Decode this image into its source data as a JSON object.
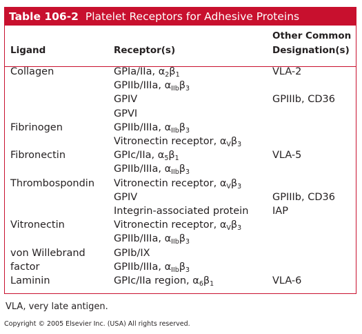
{
  "table": {
    "number": "Table 106-2",
    "title": "Platelet Receptors for Adhesive Proteins",
    "headers": {
      "ligand": "Ligand",
      "receptor": "Receptor(s)",
      "other_line1": "Other Common",
      "other_line2": "Designation(s)"
    },
    "rows": [
      {
        "ligand": "Collagen",
        "name": "GPIa/IIa, ",
        "sym": "α",
        "s1": "2",
        "sym2": "β",
        "s2": "1",
        "other": "VLA-2"
      },
      {
        "ligand": "",
        "name": "GPIIb/IIIa, ",
        "sym": "α",
        "s1": "IIb",
        "sym2": "β",
        "s2": "3",
        "other": ""
      },
      {
        "ligand": "",
        "name": "GPIV",
        "sym": "",
        "s1": "",
        "sym2": "",
        "s2": "",
        "other": "GPIIIb, CD36"
      },
      {
        "ligand": "",
        "name": "GPVI",
        "sym": "",
        "s1": "",
        "sym2": "",
        "s2": "",
        "other": ""
      },
      {
        "ligand": "Fibrinogen",
        "name": "GPIIb/IIIa, ",
        "sym": "α",
        "s1": "IIb",
        "sym2": "β",
        "s2": "3",
        "other": ""
      },
      {
        "ligand": "",
        "name": "Vitronectin receptor, ",
        "sym": "α",
        "s1": "V",
        "sym2": "β",
        "s2": "3",
        "other": ""
      },
      {
        "ligand": "Fibronectin",
        "name": "GPIc/IIa, ",
        "sym": "α",
        "s1": "5",
        "sym2": "β",
        "s2": "1",
        "other": "VLA-5"
      },
      {
        "ligand": "",
        "name": "GPIIb/IIIa, ",
        "sym": "α",
        "s1": "IIb",
        "sym2": "β",
        "s2": "3",
        "other": ""
      },
      {
        "ligand": "Thrombospondin",
        "name": "Vitronectin receptor, ",
        "sym": "α",
        "s1": "V",
        "sym2": "β",
        "s2": "3",
        "other": ""
      },
      {
        "ligand": "",
        "name": "GPIV",
        "sym": "",
        "s1": "",
        "sym2": "",
        "s2": "",
        "other": "GPIIIb, CD36"
      },
      {
        "ligand": "",
        "name": "Integrin-associated protein",
        "sym": "",
        "s1": "",
        "sym2": "",
        "s2": "",
        "other": "IAP"
      },
      {
        "ligand": "Vitronectin",
        "name": "Vitronectin receptor, ",
        "sym": "α",
        "s1": "V",
        "sym2": "β",
        "s2": "3",
        "other": ""
      },
      {
        "ligand": "",
        "name": "GPIIb/IIIa, ",
        "sym": "α",
        "s1": "IIb",
        "sym2": "β",
        "s2": "3",
        "other": ""
      },
      {
        "ligand": "von Willebrand",
        "name": "GPIb/IX",
        "sym": "",
        "s1": "",
        "sym2": "",
        "s2": "",
        "other": ""
      },
      {
        "ligand": "factor",
        "name": "GPIIb/IIIa, ",
        "sym": "α",
        "s1": "IIb",
        "sym2": "β",
        "s2": "3",
        "other": ""
      },
      {
        "ligand": "Laminin",
        "name": "GPIc/IIa region, ",
        "sym": "α",
        "s1": "6",
        "sym2": "β",
        "s2": "1",
        "other": "VLA-6"
      }
    ]
  },
  "footnote": "VLA, very late antigen.",
  "copyright": "Copyright © 2005 Elsevier Inc. (USA) All rights reserved.",
  "colors": {
    "accent": "#c8102e",
    "text": "#231f20"
  }
}
